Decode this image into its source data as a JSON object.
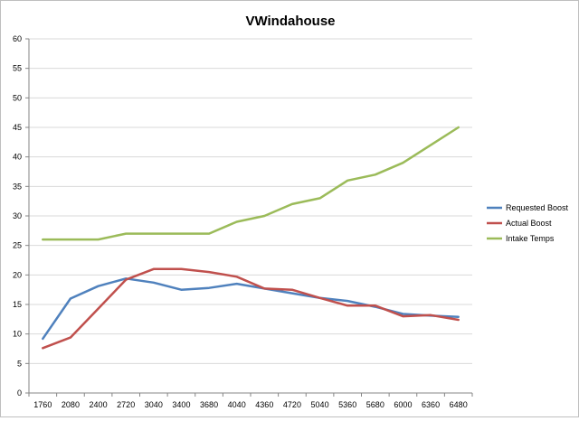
{
  "chart_data": {
    "type": "line",
    "title": "VWindahouse",
    "xlabel": "",
    "ylabel": "",
    "categories": [
      "1760",
      "2080",
      "2400",
      "2720",
      "3040",
      "3400",
      "3680",
      "4040",
      "4360",
      "4720",
      "5040",
      "5360",
      "5680",
      "6000",
      "6360",
      "6480"
    ],
    "ylim": [
      0,
      60
    ],
    "yticks": [
      0,
      5,
      10,
      15,
      20,
      25,
      30,
      35,
      40,
      45,
      50,
      55,
      60
    ],
    "grid": true,
    "legend_position": "right",
    "series": [
      {
        "name": "Requested Boost",
        "color": "#4f81bd",
        "values": [
          9.2,
          16.0,
          18.1,
          19.4,
          18.7,
          17.5,
          17.8,
          18.5,
          17.7,
          16.9,
          16.1,
          15.6,
          14.6,
          13.4,
          13.1,
          12.9
        ]
      },
      {
        "name": "Actual Boost",
        "color": "#c0504d",
        "values": [
          7.6,
          9.4,
          14.3,
          19.2,
          21.0,
          21.0,
          20.5,
          19.7,
          17.7,
          17.5,
          16.1,
          14.8,
          14.8,
          13.0,
          13.2,
          12.4
        ]
      },
      {
        "name": "Intake Temps",
        "color": "#9bbb59",
        "values": [
          26,
          26,
          26,
          27,
          27,
          27,
          27,
          29,
          30,
          32,
          33,
          36,
          37,
          39,
          42,
          45
        ]
      }
    ]
  }
}
